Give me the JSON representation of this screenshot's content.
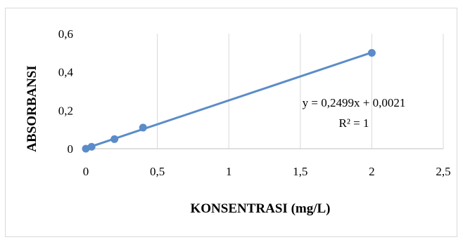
{
  "chart_data": {
    "type": "scatter",
    "xlabel": "KONSENTRASI (mg/L)",
    "ylabel": "ABSORBANSI",
    "xlim": [
      0,
      2.5
    ],
    "ylim": [
      0,
      0.6
    ],
    "x_ticks": [
      "0",
      "0,5",
      "1",
      "1,5",
      "2",
      "2,5"
    ],
    "x_tick_values": [
      0,
      0.5,
      1,
      1.5,
      2,
      2.5
    ],
    "y_ticks": [
      "0",
      "0,2",
      "0,4",
      "0,6"
    ],
    "y_tick_values": [
      0,
      0.2,
      0.4,
      0.6
    ],
    "grid": "vertical",
    "series": [
      {
        "x": [
          0,
          0.04,
          0.2,
          0.4,
          2.0
        ],
        "y": [
          0.0,
          0.01,
          0.05,
          0.11,
          0.5
        ],
        "marker_color": "#5b8cc9"
      }
    ],
    "trendline": {
      "type": "linear",
      "slope": 0.2499,
      "intercept": 0.0021,
      "x_range": [
        0,
        2.0
      ],
      "color": "#5b8cc9"
    },
    "annotations": {
      "equation": "y = 0,2499x + 0,0021",
      "r_squared": "R² = 1"
    }
  }
}
